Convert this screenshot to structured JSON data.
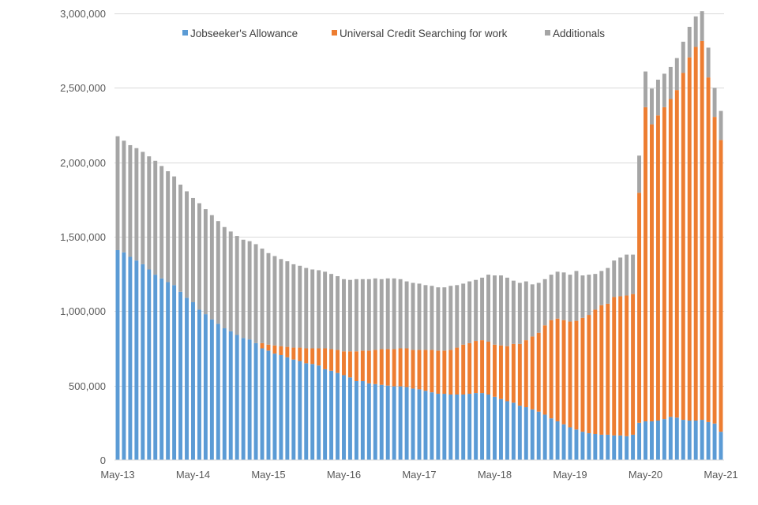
{
  "chart_data": {
    "type": "bar",
    "stacked": true,
    "title": "",
    "xlabel": "",
    "ylabel": "",
    "ylim": [
      0,
      3000000
    ],
    "yticks": [
      0,
      500000,
      1000000,
      1500000,
      2000000,
      2500000,
      3000000
    ],
    "ytick_labels": [
      "0",
      "500,000",
      "1,000,000",
      "1,500,000",
      "2,000,000",
      "2,500,000",
      "3,000,000"
    ],
    "grid": true,
    "legend_position": "top",
    "start_month": "May-13",
    "xtick_labels": [
      "May-13",
      "May-14",
      "May-15",
      "May-16",
      "May-17",
      "May-18",
      "May-19",
      "May-20",
      "May-21"
    ],
    "xtick_every": 12,
    "series": [
      {
        "name": "Jobseeker's Allowance",
        "color": "#5b9bd5",
        "values": [
          1410000,
          1395000,
          1365000,
          1340000,
          1315000,
          1280000,
          1245000,
          1220000,
          1195000,
          1175000,
          1130000,
          1090000,
          1060000,
          1010000,
          980000,
          945000,
          915000,
          885000,
          865000,
          840000,
          820000,
          810000,
          785000,
          750000,
          735000,
          715000,
          705000,
          690000,
          675000,
          665000,
          650000,
          645000,
          635000,
          610000,
          600000,
          585000,
          570000,
          555000,
          530000,
          530000,
          515000,
          510000,
          505000,
          500000,
          495000,
          495000,
          490000,
          480000,
          475000,
          465000,
          455000,
          445000,
          445000,
          440000,
          440000,
          440000,
          445000,
          450000,
          450000,
          440000,
          425000,
          410000,
          395000,
          385000,
          365000,
          355000,
          340000,
          325000,
          305000,
          280000,
          260000,
          240000,
          220000,
          205000,
          190000,
          180000,
          175000,
          170000,
          170000,
          165000,
          165000,
          160000,
          170000,
          250000,
          260000,
          260000,
          265000,
          275000,
          290000,
          285000,
          270000,
          265000,
          265000,
          270000,
          255000,
          245000,
          190000
        ]
      },
      {
        "name": "Universal Credit Searching for work",
        "color": "#ed7d31",
        "values": [
          0,
          0,
          0,
          0,
          0,
          0,
          0,
          0,
          0,
          0,
          0,
          0,
          0,
          0,
          0,
          0,
          0,
          0,
          0,
          0,
          0,
          0,
          0,
          35000,
          40000,
          55000,
          60000,
          70000,
          80000,
          90000,
          100000,
          105000,
          115000,
          140000,
          145000,
          155000,
          160000,
          175000,
          200000,
          205000,
          220000,
          230000,
          240000,
          245000,
          250000,
          255000,
          260000,
          260000,
          265000,
          275000,
          285000,
          290000,
          290000,
          300000,
          315000,
          335000,
          340000,
          350000,
          355000,
          355000,
          350000,
          360000,
          370000,
          395000,
          415000,
          450000,
          490000,
          530000,
          600000,
          660000,
          690000,
          700000,
          710000,
          730000,
          765000,
          795000,
          835000,
          870000,
          880000,
          930000,
          935000,
          945000,
          945000,
          1545000,
          2110000,
          1995000,
          2050000,
          2095000,
          2135000,
          2200000,
          2330000,
          2440000,
          2510000,
          2545000,
          2315000,
          2060000,
          1960000
        ]
      },
      {
        "name": "Additionals",
        "color": "#a5a5a5",
        "values": [
          765000,
          750000,
          750000,
          755000,
          755000,
          760000,
          765000,
          755000,
          745000,
          730000,
          720000,
          715000,
          700000,
          715000,
          705000,
          700000,
          690000,
          680000,
          670000,
          665000,
          660000,
          660000,
          665000,
          635000,
          615000,
          600000,
          585000,
          575000,
          560000,
          550000,
          540000,
          530000,
          525000,
          515000,
          505000,
          495000,
          485000,
          480000,
          485000,
          480000,
          480000,
          480000,
          470000,
          475000,
          475000,
          465000,
          450000,
          450000,
          445000,
          435000,
          430000,
          425000,
          425000,
          430000,
          420000,
          410000,
          415000,
          410000,
          420000,
          450000,
          465000,
          470000,
          460000,
          425000,
          410000,
          395000,
          350000,
          335000,
          310000,
          305000,
          315000,
          320000,
          315000,
          335000,
          285000,
          270000,
          240000,
          230000,
          240000,
          245000,
          260000,
          275000,
          265000,
          250000,
          240000,
          240000,
          240000,
          225000,
          215000,
          215000,
          210000,
          205000,
          205000,
          200000,
          200000,
          195000,
          195000
        ]
      }
    ]
  }
}
